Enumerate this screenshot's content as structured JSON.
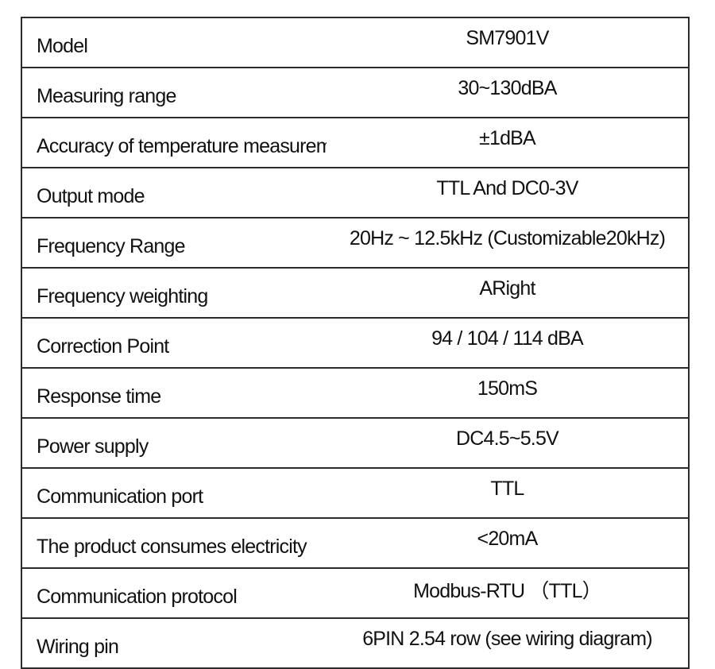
{
  "specs": [
    {
      "label": "Model",
      "value": "SM7901V"
    },
    {
      "label": "Measuring range",
      "value": "30~130dBA"
    },
    {
      "label": "Accuracy of temperature measurement",
      "value": "±1dBA"
    },
    {
      "label": "Output mode",
      "value": "TTL And DC0-3V"
    },
    {
      "label": "Frequency Range",
      "value": "20Hz ~ 12.5kHz (Customizable20kHz)"
    },
    {
      "label": "Frequency weighting",
      "value": "ARight"
    },
    {
      "label": "Correction Point",
      "value": "94 / 104 / 114 dBA"
    },
    {
      "label": "Response time",
      "value": "150mS"
    },
    {
      "label": "Power supply",
      "value": "DC4.5~5.5V"
    },
    {
      "label": "Communication port",
      "value": "TTL"
    },
    {
      "label": "The product consumes electricity",
      "value": "<20mA"
    },
    {
      "label": "Communication protocol",
      "value": "Modbus-RTU （TTL）"
    },
    {
      "label": "Wiring pin",
      "value": "6PIN 2.54 row (see wiring diagram)"
    }
  ]
}
